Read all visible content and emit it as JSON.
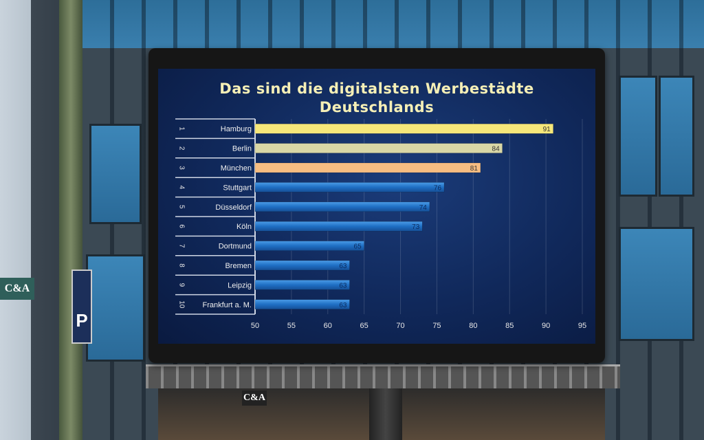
{
  "scene": {
    "signs": {
      "ca_side": "C&A",
      "parking": "P",
      "ca_store": "C&A"
    }
  },
  "chart_data": {
    "type": "bar",
    "orientation": "horizontal",
    "title": "Das sind die digitalsten Werbestädte Deutschlands",
    "title_lines": [
      "Das sind die digitalsten Werbestädte",
      "Deutschlands"
    ],
    "ranks": [
      "1",
      "2",
      "3",
      "4",
      "5",
      "6",
      "7",
      "8",
      "9",
      "10"
    ],
    "categories": [
      "Hamburg",
      "Berlin",
      "München",
      "Stuttgart",
      "Düsseldorf",
      "Köln",
      "Dortmund",
      "Bremen",
      "Leipzig",
      "Frankfurt a. M."
    ],
    "values": [
      91,
      84,
      81,
      76,
      74,
      73,
      65,
      63,
      63,
      63
    ],
    "bar_colors": [
      "#f6e77a",
      "#d9d7a6",
      "#f6bd82",
      "#1f6fc4",
      "#1f6fc4",
      "#1f6fc4",
      "#1f6fc4",
      "#1f6fc4",
      "#1f6fc4",
      "#1f6fc4"
    ],
    "xlim": [
      50,
      95
    ],
    "xticks": [
      50,
      55,
      60,
      65,
      70,
      75,
      80,
      85,
      90,
      95
    ],
    "grid": true,
    "data_labels": true,
    "xlabel": "",
    "ylabel": ""
  }
}
